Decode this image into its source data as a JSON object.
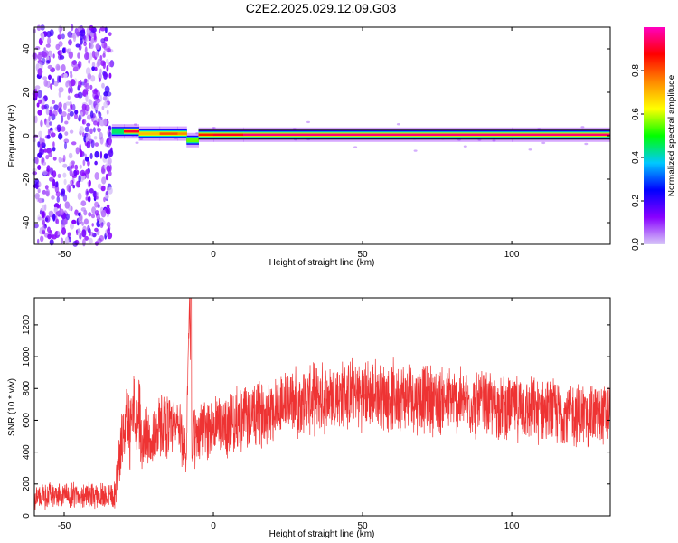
{
  "title": "C2E2.2025.029.12.09.G03",
  "chart_data": [
    {
      "type": "heatmap",
      "xlabel": "Height of straight line (km)",
      "ylabel": "Frequency (Hz)",
      "xlim": [
        -60,
        133
      ],
      "ylim": [
        -50,
        50
      ],
      "xticks": [
        -50,
        0,
        50,
        100
      ],
      "yticks": [
        -40,
        -20,
        0,
        20,
        40
      ],
      "colorbar": {
        "label": "Normalized spectral amplitude",
        "range": [
          0,
          1
        ],
        "ticks": [
          "0.0",
          "0.2",
          "0.4",
          "0.6",
          "0.8"
        ],
        "colors": [
          "#d8c8f8",
          "#8800ff",
          "#0000ff",
          "#00c8ff",
          "#00ff00",
          "#ffff00",
          "#ff8800",
          "#ff0000",
          "#ff00c0"
        ]
      },
      "noise_region_x": [
        -60,
        -34
      ],
      "ridge": [
        {
          "x": -34,
          "freq": 2,
          "amp": 0.45
        },
        {
          "x": -30,
          "freq": 2,
          "amp": 0.9
        },
        {
          "x": -25,
          "freq": 1,
          "amp": 0.7
        },
        {
          "x": -18,
          "freq": 1,
          "amp": 0.8
        },
        {
          "x": -12,
          "freq": 1,
          "amp": 0.75
        },
        {
          "x": -9,
          "freq": -2,
          "amp": 0.55
        },
        {
          "x": -5,
          "freq": 0.5,
          "amp": 0.85
        },
        {
          "x": 0,
          "freq": 0.5,
          "amp": 0.9
        },
        {
          "x": 10,
          "freq": 0.5,
          "amp": 0.95
        },
        {
          "x": 50,
          "freq": 0.5,
          "amp": 0.95
        },
        {
          "x": 100,
          "freq": 0.5,
          "amp": 0.95
        },
        {
          "x": 133,
          "freq": 0.5,
          "amp": 0.95
        }
      ]
    },
    {
      "type": "line",
      "xlabel": "Height of straight line (km)",
      "ylabel": "SNR (10 * v/v)",
      "xlim": [
        -60,
        133
      ],
      "ylim": [
        0,
        1370
      ],
      "xticks": [
        -50,
        0,
        50,
        100
      ],
      "yticks": [
        0,
        200,
        400,
        600,
        800,
        1000,
        1200
      ],
      "series": [
        {
          "color": "#ee3333",
          "x": [
            -60,
            -50,
            -40,
            -33,
            -32,
            -31,
            -29,
            -28,
            -27,
            -26,
            -25,
            -24,
            -23,
            -22,
            -21,
            -20,
            -18,
            -16,
            -14,
            -12,
            -10,
            -9,
            -8,
            -7.5,
            -7,
            -6,
            -5,
            -4,
            -2,
            0,
            5,
            10,
            15,
            20,
            25,
            30,
            35,
            40,
            45,
            50,
            55,
            60,
            65,
            70,
            75,
            80,
            85,
            90,
            95,
            100,
            105,
            110,
            115,
            120,
            125,
            133
          ],
          "mean": [
            120,
            130,
            125,
            140,
            300,
            420,
            650,
            500,
            800,
            600,
            720,
            420,
            500,
            560,
            380,
            520,
            560,
            600,
            520,
            580,
            450,
            420,
            1380,
            350,
            500,
            480,
            520,
            540,
            550,
            560,
            580,
            610,
            640,
            680,
            710,
            720,
            740,
            750,
            760,
            760,
            760,
            750,
            750,
            740,
            730,
            720,
            710,
            700,
            690,
            680,
            670,
            660,
            650,
            640,
            630,
            630
          ],
          "spread": [
            90,
            90,
            90,
            110,
            180,
            200,
            260,
            250,
            300,
            260,
            280,
            220,
            200,
            230,
            180,
            220,
            230,
            240,
            220,
            240,
            200,
            200,
            100,
            200,
            220,
            220,
            220,
            220,
            220,
            230,
            230,
            230,
            230,
            240,
            240,
            240,
            250,
            250,
            250,
            250,
            250,
            250,
            250,
            250,
            250,
            240,
            240,
            240,
            230,
            230,
            230,
            230,
            230,
            230,
            230,
            230
          ]
        }
      ]
    }
  ]
}
